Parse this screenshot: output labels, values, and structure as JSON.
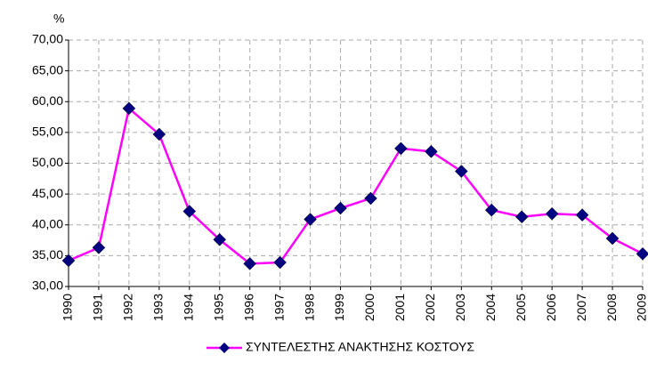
{
  "chart_data": {
    "type": "line",
    "y_label": "%",
    "categories": [
      "1990",
      "1991",
      "1992",
      "1993",
      "1994",
      "1995",
      "1996",
      "1997",
      "1998",
      "1999",
      "2000",
      "2001",
      "2002",
      "2003",
      "2004",
      "2005",
      "2006",
      "2007",
      "2008",
      "2009"
    ],
    "series": [
      {
        "name": "ΣΥΝΤΕΛΕΣΤΗΣ ΑΝΑΚΤΗΣΗΣ ΚΟΣΤΟΥΣ",
        "color": "#ff00ff",
        "marker_color": "#000080",
        "values": [
          34.2,
          36.3,
          58.9,
          54.7,
          42.2,
          37.6,
          33.7,
          33.9,
          40.9,
          42.7,
          44.3,
          52.4,
          51.9,
          48.7,
          42.4,
          41.3,
          41.8,
          41.6,
          37.8,
          35.3
        ]
      }
    ],
    "ylim": [
      30,
      70
    ],
    "yticks": [
      {
        "value": 30,
        "label": "30,00"
      },
      {
        "value": 35,
        "label": "35,00"
      },
      {
        "value": 40,
        "label": "40,00"
      },
      {
        "value": 45,
        "label": "45,00"
      },
      {
        "value": 50,
        "label": "50,00"
      },
      {
        "value": 55,
        "label": "55,00"
      },
      {
        "value": 60,
        "label": "60,00"
      },
      {
        "value": 65,
        "label": "65,00"
      },
      {
        "value": 70,
        "label": "70,00"
      }
    ],
    "grid": true,
    "legend": "bottom"
  }
}
